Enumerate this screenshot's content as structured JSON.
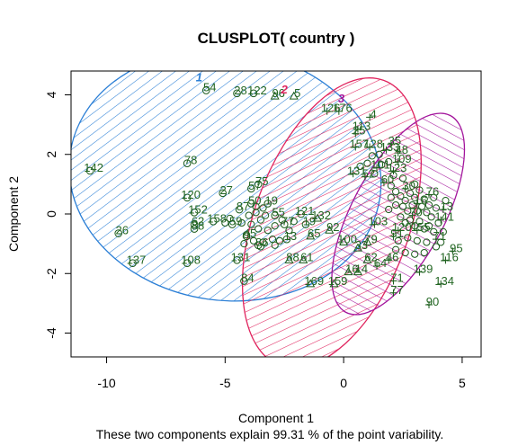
{
  "chart_data": {
    "type": "scatter",
    "title": "CLUSPLOT( country )",
    "xlabel": "Component 1",
    "subtitle": "These two components explain 99.31 % of the point variability.",
    "ylabel": "Component 2",
    "xlim": [
      -11.5,
      5.8
    ],
    "ylim": [
      -4.8,
      4.8
    ],
    "xticks": [
      -10,
      -5,
      0,
      5
    ],
    "yticks": [
      -4,
      -2,
      0,
      2,
      4
    ],
    "xtick_labels": [
      "-10",
      "-5",
      "0",
      "5"
    ],
    "ytick_labels": [
      "-4",
      "-2",
      "0",
      "2",
      "4"
    ],
    "grid": false,
    "clusters": [
      {
        "name": "1",
        "color": "#2b7fd6",
        "center": [
          -5.0,
          1.3
        ],
        "rx": 6.6,
        "ry": 4.2,
        "angle": 8,
        "hatch": 45
      },
      {
        "name": "2",
        "color": "#e0245e",
        "center": [
          -0.5,
          -0.3
        ],
        "rx": 6.4,
        "ry": 2.6,
        "angle": -70,
        "hatch": -45
      },
      {
        "name": "3",
        "color": "#a3159c",
        "center": [
          2.3,
          0.0
        ],
        "rx": 4.7,
        "ry": 1.55,
        "angle": -62,
        "hatch": 0
      }
    ],
    "cluster_labels": [
      {
        "text": "1",
        "x": -6.1,
        "y": 4.45,
        "color": "#2b7fd6"
      },
      {
        "text": "2",
        "x": -2.5,
        "y": 4.05,
        "color": "#e0245e"
      },
      {
        "text": "3",
        "x": -0.1,
        "y": 3.75,
        "color": "#a3159c"
      }
    ],
    "points": [
      {
        "label": "54",
        "x": -5.8,
        "y": 4.15,
        "group": 1
      },
      {
        "label": "28",
        "x": -4.5,
        "y": 4.05,
        "group": 1
      },
      {
        "label": "122",
        "x": -3.8,
        "y": 4.05,
        "group": 1
      },
      {
        "label": "96",
        "x": -2.9,
        "y": 3.95,
        "group": 2
      },
      {
        "label": "5",
        "x": -2.1,
        "y": 3.95,
        "group": 2
      },
      {
        "label": "142",
        "x": -10.7,
        "y": 1.45,
        "group": 1
      },
      {
        "label": "78",
        "x": -6.6,
        "y": 1.7,
        "group": 1
      },
      {
        "label": "27",
        "x": -5.1,
        "y": 0.7,
        "group": 1
      },
      {
        "label": "120",
        "x": -6.6,
        "y": 0.55,
        "group": 1
      },
      {
        "label": "152",
        "x": -6.3,
        "y": 0.05,
        "group": 1
      },
      {
        "label": "62",
        "x": -6.3,
        "y": -0.35,
        "group": 1
      },
      {
        "label": "158",
        "x": -5.5,
        "y": -0.25,
        "group": 1
      },
      {
        "label": "88",
        "x": -6.3,
        "y": -0.5,
        "group": 1
      },
      {
        "label": "26",
        "x": -9.5,
        "y": -0.65,
        "group": 1
      },
      {
        "label": "137",
        "x": -8.9,
        "y": -1.65,
        "group": 1
      },
      {
        "label": "108",
        "x": -6.6,
        "y": -1.65,
        "group": 1
      },
      {
        "label": "131",
        "x": -4.5,
        "y": -1.55,
        "group": 1
      },
      {
        "label": "84",
        "x": -4.2,
        "y": -2.25,
        "group": 1
      },
      {
        "label": "75",
        "x": -3.6,
        "y": 1.0,
        "group": 1
      },
      {
        "label": "57",
        "x": -3.9,
        "y": 0.85,
        "group": 1
      },
      {
        "label": "50",
        "x": -3.9,
        "y": 0.35,
        "group": 1
      },
      {
        "label": "19",
        "x": -3.2,
        "y": 0.35,
        "group": 1
      },
      {
        "label": "87",
        "x": -4.4,
        "y": 0.15,
        "group": 1
      },
      {
        "label": "55",
        "x": -2.9,
        "y": -0.05,
        "group": 1
      },
      {
        "label": "121",
        "x": -1.8,
        "y": 0.0,
        "group": 1
      },
      {
        "label": "77",
        "x": -2.5,
        "y": -0.35,
        "group": 1
      },
      {
        "label": "19",
        "x": -1.6,
        "y": -0.35,
        "group": 1
      },
      {
        "label": "59",
        "x": -4.7,
        "y": -0.35,
        "group": 1
      },
      {
        "label": "13",
        "x": -2.4,
        "y": -0.85,
        "group": 1
      },
      {
        "label": "65",
        "x": -1.4,
        "y": -0.75,
        "group": 2
      },
      {
        "label": "132",
        "x": -1.1,
        "y": -0.15,
        "group": 2
      },
      {
        "label": "92",
        "x": -0.6,
        "y": -0.55,
        "group": 2
      },
      {
        "label": "86",
        "x": -3.6,
        "y": -1.05,
        "group": 1
      },
      {
        "label": "45",
        "x": -4.1,
        "y": -0.75,
        "group": 1
      },
      {
        "label": "88",
        "x": -2.3,
        "y": -1.55,
        "group": 2
      },
      {
        "label": "61",
        "x": -1.7,
        "y": -1.55,
        "group": 2
      },
      {
        "label": "169",
        "x": -1.4,
        "y": -2.35,
        "group": 2
      },
      {
        "label": "159",
        "x": -0.4,
        "y": -2.35,
        "group": 2
      },
      {
        "label": "100",
        "x": 0.0,
        "y": -0.95,
        "group": 2
      },
      {
        "label": "79",
        "x": 1.0,
        "y": -0.95,
        "group": 2
      },
      {
        "label": "33",
        "x": 0.6,
        "y": -1.15,
        "group": 2
      },
      {
        "label": "16",
        "x": 0.2,
        "y": -1.95,
        "group": 2
      },
      {
        "label": "14",
        "x": 0.6,
        "y": -1.95,
        "group": 2
      },
      {
        "label": "62",
        "x": 1.0,
        "y": -1.55,
        "group": 2
      },
      {
        "label": "64",
        "x": 1.4,
        "y": -1.75,
        "group": 3
      },
      {
        "label": "46",
        "x": 1.9,
        "y": -1.55,
        "group": 3
      },
      {
        "label": "71",
        "x": 2.1,
        "y": -2.25,
        "group": 3
      },
      {
        "label": "77",
        "x": 2.1,
        "y": -2.65,
        "group": 3
      },
      {
        "label": "103",
        "x": 1.3,
        "y": -0.35,
        "group": 3
      },
      {
        "label": "91",
        "x": 2.1,
        "y": -0.75,
        "group": 3
      },
      {
        "label": "139",
        "x": 3.2,
        "y": -1.95,
        "group": 3
      },
      {
        "label": "134",
        "x": 4.1,
        "y": -2.35,
        "group": 3
      },
      {
        "label": "90",
        "x": 3.6,
        "y": -3.05,
        "group": 3
      },
      {
        "label": "116",
        "x": 4.3,
        "y": -1.55,
        "group": 3
      },
      {
        "label": "95",
        "x": 4.6,
        "y": -1.25,
        "group": 3
      },
      {
        "label": "141",
        "x": 4.1,
        "y": -0.2,
        "group": 3
      },
      {
        "label": "35",
        "x": 2.0,
        "y": 2.35,
        "group": 3
      },
      {
        "label": "48",
        "x": 2.3,
        "y": 2.05,
        "group": 3
      },
      {
        "label": "133",
        "x": 1.8,
        "y": 2.15,
        "group": 3
      },
      {
        "label": "25",
        "x": 0.5,
        "y": 2.7,
        "group": 3
      },
      {
        "label": "4",
        "x": 1.1,
        "y": 3.25,
        "group": 3
      },
      {
        "label": "126",
        "x": -0.7,
        "y": 3.45,
        "group": 3
      },
      {
        "label": "176",
        "x": -0.2,
        "y": 3.45,
        "group": 3
      },
      {
        "label": "113",
        "x": 0.6,
        "y": 2.85,
        "group": 3
      },
      {
        "label": "157",
        "x": 0.5,
        "y": 2.25,
        "group": 3
      },
      {
        "label": "128",
        "x": 1.1,
        "y": 2.25,
        "group": 3
      },
      {
        "label": "109",
        "x": 2.3,
        "y": 1.75,
        "group": 3
      },
      {
        "label": "101",
        "x": 1.4,
        "y": 1.55,
        "group": 3
      },
      {
        "label": "123",
        "x": 2.1,
        "y": 1.45,
        "group": 3
      },
      {
        "label": "131",
        "x": 0.4,
        "y": 1.35,
        "group": 3
      },
      {
        "label": "52",
        "x": 0.9,
        "y": 1.25,
        "group": 3
      },
      {
        "label": "60",
        "x": 1.7,
        "y": 1.05,
        "group": 3
      },
      {
        "label": "30",
        "x": 2.6,
        "y": 0.85,
        "group": 3
      },
      {
        "label": "76",
        "x": 3.6,
        "y": 0.65,
        "group": 3
      },
      {
        "label": "16",
        "x": 3.1,
        "y": 0.35,
        "group": 3
      },
      {
        "label": "13",
        "x": 4.2,
        "y": 0.15,
        "group": 3
      },
      {
        "label": "70",
        "x": 2.9,
        "y": -0.05,
        "group": 3
      },
      {
        "label": "155",
        "x": 3.1,
        "y": -0.55,
        "group": 3
      },
      {
        "label": "120",
        "x": 2.3,
        "y": -0.55,
        "group": 3
      },
      {
        "label": "71",
        "x": 3.9,
        "y": -0.85,
        "group": 3
      }
    ],
    "dense_points": [
      {
        "x": -4.0,
        "y": -0.05
      },
      {
        "x": -3.7,
        "y": 0.05
      },
      {
        "x": -3.5,
        "y": -0.2
      },
      {
        "x": -3.3,
        "y": -0.05
      },
      {
        "x": -3.9,
        "y": -0.35
      },
      {
        "x": -3.6,
        "y": -0.5
      },
      {
        "x": -3.2,
        "y": -0.55
      },
      {
        "x": -2.9,
        "y": -0.4
      },
      {
        "x": -2.6,
        "y": -0.2
      },
      {
        "x": -2.3,
        "y": -0.55
      },
      {
        "x": -2.1,
        "y": -0.25
      },
      {
        "x": -4.1,
        "y": -0.7
      },
      {
        "x": -3.8,
        "y": -0.9
      },
      {
        "x": -3.4,
        "y": -0.95
      },
      {
        "x": -3.0,
        "y": -0.85
      },
      {
        "x": -2.7,
        "y": -0.9
      },
      {
        "x": -4.2,
        "y": -1.0
      },
      {
        "x": -3.5,
        "y": -1.1
      },
      {
        "x": -2.9,
        "y": -1.05
      },
      {
        "x": -3.7,
        "y": 0.25
      },
      {
        "x": -3.4,
        "y": 0.2
      },
      {
        "x": -4.3,
        "y": -0.3
      },
      {
        "x": -5.0,
        "y": -0.3
      },
      {
        "x": -4.8,
        "y": -0.15
      },
      {
        "x": 2.0,
        "y": 0.95
      },
      {
        "x": 2.2,
        "y": 0.75
      },
      {
        "x": 2.4,
        "y": 0.6
      },
      {
        "x": 2.6,
        "y": 0.45
      },
      {
        "x": 2.8,
        "y": 0.7
      },
      {
        "x": 3.0,
        "y": 0.55
      },
      {
        "x": 3.2,
        "y": 0.8
      },
      {
        "x": 3.4,
        "y": 0.5
      },
      {
        "x": 3.6,
        "y": 0.3
      },
      {
        "x": 3.8,
        "y": 0.55
      },
      {
        "x": 2.5,
        "y": 0.25
      },
      {
        "x": 2.7,
        "y": 0.1
      },
      {
        "x": 2.9,
        "y": 0.3
      },
      {
        "x": 3.1,
        "y": 0.1
      },
      {
        "x": 3.3,
        "y": 0.25
      },
      {
        "x": 3.5,
        "y": 0.05
      },
      {
        "x": 3.7,
        "y": -0.1
      },
      {
        "x": 3.9,
        "y": 0.2
      },
      {
        "x": 4.0,
        "y": -0.3
      },
      {
        "x": 2.2,
        "y": 0.3
      },
      {
        "x": 2.0,
        "y": 0.55
      },
      {
        "x": 1.9,
        "y": 0.15
      },
      {
        "x": 2.4,
        "y": -0.1
      },
      {
        "x": 2.6,
        "y": -0.3
      },
      {
        "x": 2.8,
        "y": -0.2
      },
      {
        "x": 3.0,
        "y": -0.4
      },
      {
        "x": 3.2,
        "y": -0.25
      },
      {
        "x": 3.4,
        "y": -0.5
      },
      {
        "x": 3.6,
        "y": -0.4
      },
      {
        "x": 3.8,
        "y": -0.6
      },
      {
        "x": 2.3,
        "y": -0.9
      },
      {
        "x": 2.7,
        "y": -0.8
      },
      {
        "x": 3.1,
        "y": -0.9
      },
      {
        "x": 3.5,
        "y": -0.95
      },
      {
        "x": 3.9,
        "y": -1.1
      },
      {
        "x": 4.1,
        "y": -0.95
      },
      {
        "x": 1.6,
        "y": 1.65
      },
      {
        "x": 1.9,
        "y": 1.75
      },
      {
        "x": 1.2,
        "y": 1.95
      },
      {
        "x": 1.5,
        "y": 2.0
      },
      {
        "x": 2.5,
        "y": 1.2
      },
      {
        "x": 2.1,
        "y": 1.3
      },
      {
        "x": 1.3,
        "y": 1.35
      },
      {
        "x": 3.0,
        "y": 1.0
      },
      {
        "x": 0.7,
        "y": 1.6
      },
      {
        "x": 1.0,
        "y": 1.7
      },
      {
        "x": 2.6,
        "y": -1.3
      },
      {
        "x": 3.0,
        "y": -1.35
      },
      {
        "x": 3.4,
        "y": -1.3
      },
      {
        "x": 2.2,
        "y": -1.2
      },
      {
        "x": 4.2,
        "y": -0.6
      },
      {
        "x": 4.3,
        "y": 0.45
      }
    ],
    "colors": {
      "points": "#1a5a1a",
      "text": "#226622",
      "axis": "#000000"
    }
  }
}
